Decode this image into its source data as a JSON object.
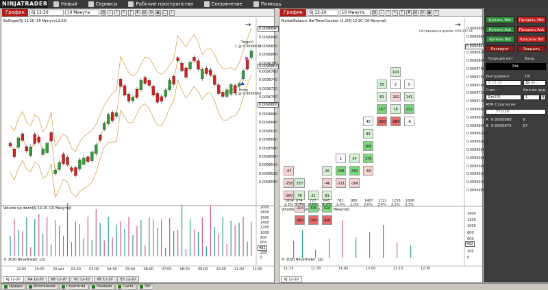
{
  "menubar": {
    "logo": "NINJATRADER",
    "items": [
      {
        "label": "Новый",
        "icon": "plus-icon"
      },
      {
        "label": "Сервисы",
        "icon": "wrench-icon"
      },
      {
        "label": "Рабочие пространства",
        "icon": "workspace-icon"
      },
      {
        "label": "Соединение",
        "icon": "connection-icon"
      },
      {
        "label": "Помощь",
        "icon": "help-icon"
      }
    ]
  },
  "left_chart": {
    "title": "График",
    "instrument": "6J 12-20",
    "interval": "10 Минута",
    "bollinger_caption": "Bollinger(6J 12-20 (10 Минута),2,20)",
    "target_label": "Target1",
    "target_qty": "1 @ 0.0096839",
    "entry_label": "Entry",
    "entry_qty": "1 @ 0.0095660",
    "price_labels": [
      "0.0096877",
      "0.0096848",
      "0.0096820",
      "0.0096800",
      "0.0096780",
      "0.0096760",
      "0.0096740",
      "0.0096720",
      "0.0096700",
      "0.0096680",
      "0.0096660",
      "0.0096640",
      "0.0096620",
      "0.0096600",
      "0.0096580",
      "0.0096560",
      "0.0096540",
      "0.0096520",
      "0.0096500"
    ],
    "last_price": "0.0096848",
    "mid_price": "0.0096864",
    "low_price": "0.0096808",
    "volume_caption": "Volume up down(6J 12-20 (10 Минута))",
    "volume_ticks": [
      "2000",
      "1800",
      "1600",
      "1400",
      "1200",
      "1000",
      "800",
      "600",
      "400",
      "200",
      "0"
    ],
    "volume_last": "482",
    "copyright": "© 2020 NinjaTrader, LLC",
    "time_labels": [
      "22:00",
      "23:00",
      "20 окт",
      "02:00",
      "03:00",
      "04:00",
      "05:00",
      "06:00",
      "07:00",
      "08:00",
      "09:00",
      "10:00",
      "11:00",
      "12:00"
    ],
    "tabs": [
      "6J 12-20",
      "6A 12-20",
      "6B 12-20",
      "6C 12-20",
      "6E 12-20",
      "ES 12-20"
    ]
  },
  "right_chart": {
    "title": "График",
    "instrument": "6J 12-20",
    "interval": "10 Минута",
    "caption": "MarketBalance, BarTimerCounter v1.2(6J 12-20 (10 Минута))",
    "timer_text": "Оставшееся время =06:05:14",
    "price_labels": [
      "0.0096880",
      "0.0096860",
      "0.0096848",
      "0.0096820",
      "0.0096800",
      "0.0096780",
      "0.0096760",
      "0.0096740",
      "0.0096720",
      "0.0096700",
      "0.0096680",
      "0.0096660",
      "0.0096640",
      "0.0096620",
      "0.0096600",
      "0.0096580",
      "0.0096560",
      "0.0096540",
      "0.0096520",
      "0.0096500",
      "0.0096480"
    ],
    "delta_totals": [
      "1804",
      "874",
      "727",
      "645",
      "783",
      "980",
      "1487",
      "1722",
      "1256",
      "1606"
    ],
    "delta_pcts": [
      "2,3%",
      "1,0%",
      "1,6%",
      "1,2%",
      "1,4%",
      "2,0%",
      "2,0%",
      "3,4%",
      "2,5%",
      "3,1%"
    ],
    "volume_caption": "Volume up down(6J 12-20 (10 Минута))",
    "volume_ticks": [
      "1400",
      "1200",
      "1000",
      "800",
      "600",
      "400",
      "200",
      "0"
    ],
    "volume_last": "482",
    "copyright": "© 2020 NinjaTrader, LLC",
    "time_labels": [
      "11:15",
      "11:30",
      "11:45",
      "12:00",
      "12:15",
      "12:30"
    ],
    "tab": "6J 12-20"
  },
  "trade_panel": {
    "buy_mkt": "Купить Mkt",
    "sell_mkt": "Продать Mkt",
    "buy_ask": "Купить Ask",
    "sell_ask": "Продать Ask",
    "buy_bid": "Купить Bid",
    "sell_bid": "Продать Bid",
    "reverse": "Разворот",
    "close": "Закрыть",
    "position_label": "Позиций нет",
    "entry_label": "Вход",
    "pnl_label": "PnL",
    "instrument_label": "Инструмент",
    "tif_label": "TIF",
    "instrument_value": "6J 12-20",
    "tif_value": "До от...",
    "account_label": "Счет",
    "qty_label": "Кол-во орд.",
    "account_value": "Sim101",
    "qty_value": "1",
    "atm_label": "ATM Стратегия",
    "atm_value": "77.0.10",
    "ask_label": "A",
    "ask_price": "0.0095880",
    "ask_size": "6",
    "bid_label": "B",
    "bid_price": "0.0095875",
    "bid_size": "57"
  },
  "statusbar": {
    "tabs": [
      "Ордера",
      "Исполнения",
      "Стратегии",
      "Позиции",
      "Счета",
      "Лог"
    ]
  },
  "colors": {
    "bull": "#2e9b3a",
    "bear": "#d21f1f",
    "band": "#d4a04a",
    "accent": "#b2201b",
    "panel": "#3c3c3c",
    "teal": "#2a9a8a"
  }
}
